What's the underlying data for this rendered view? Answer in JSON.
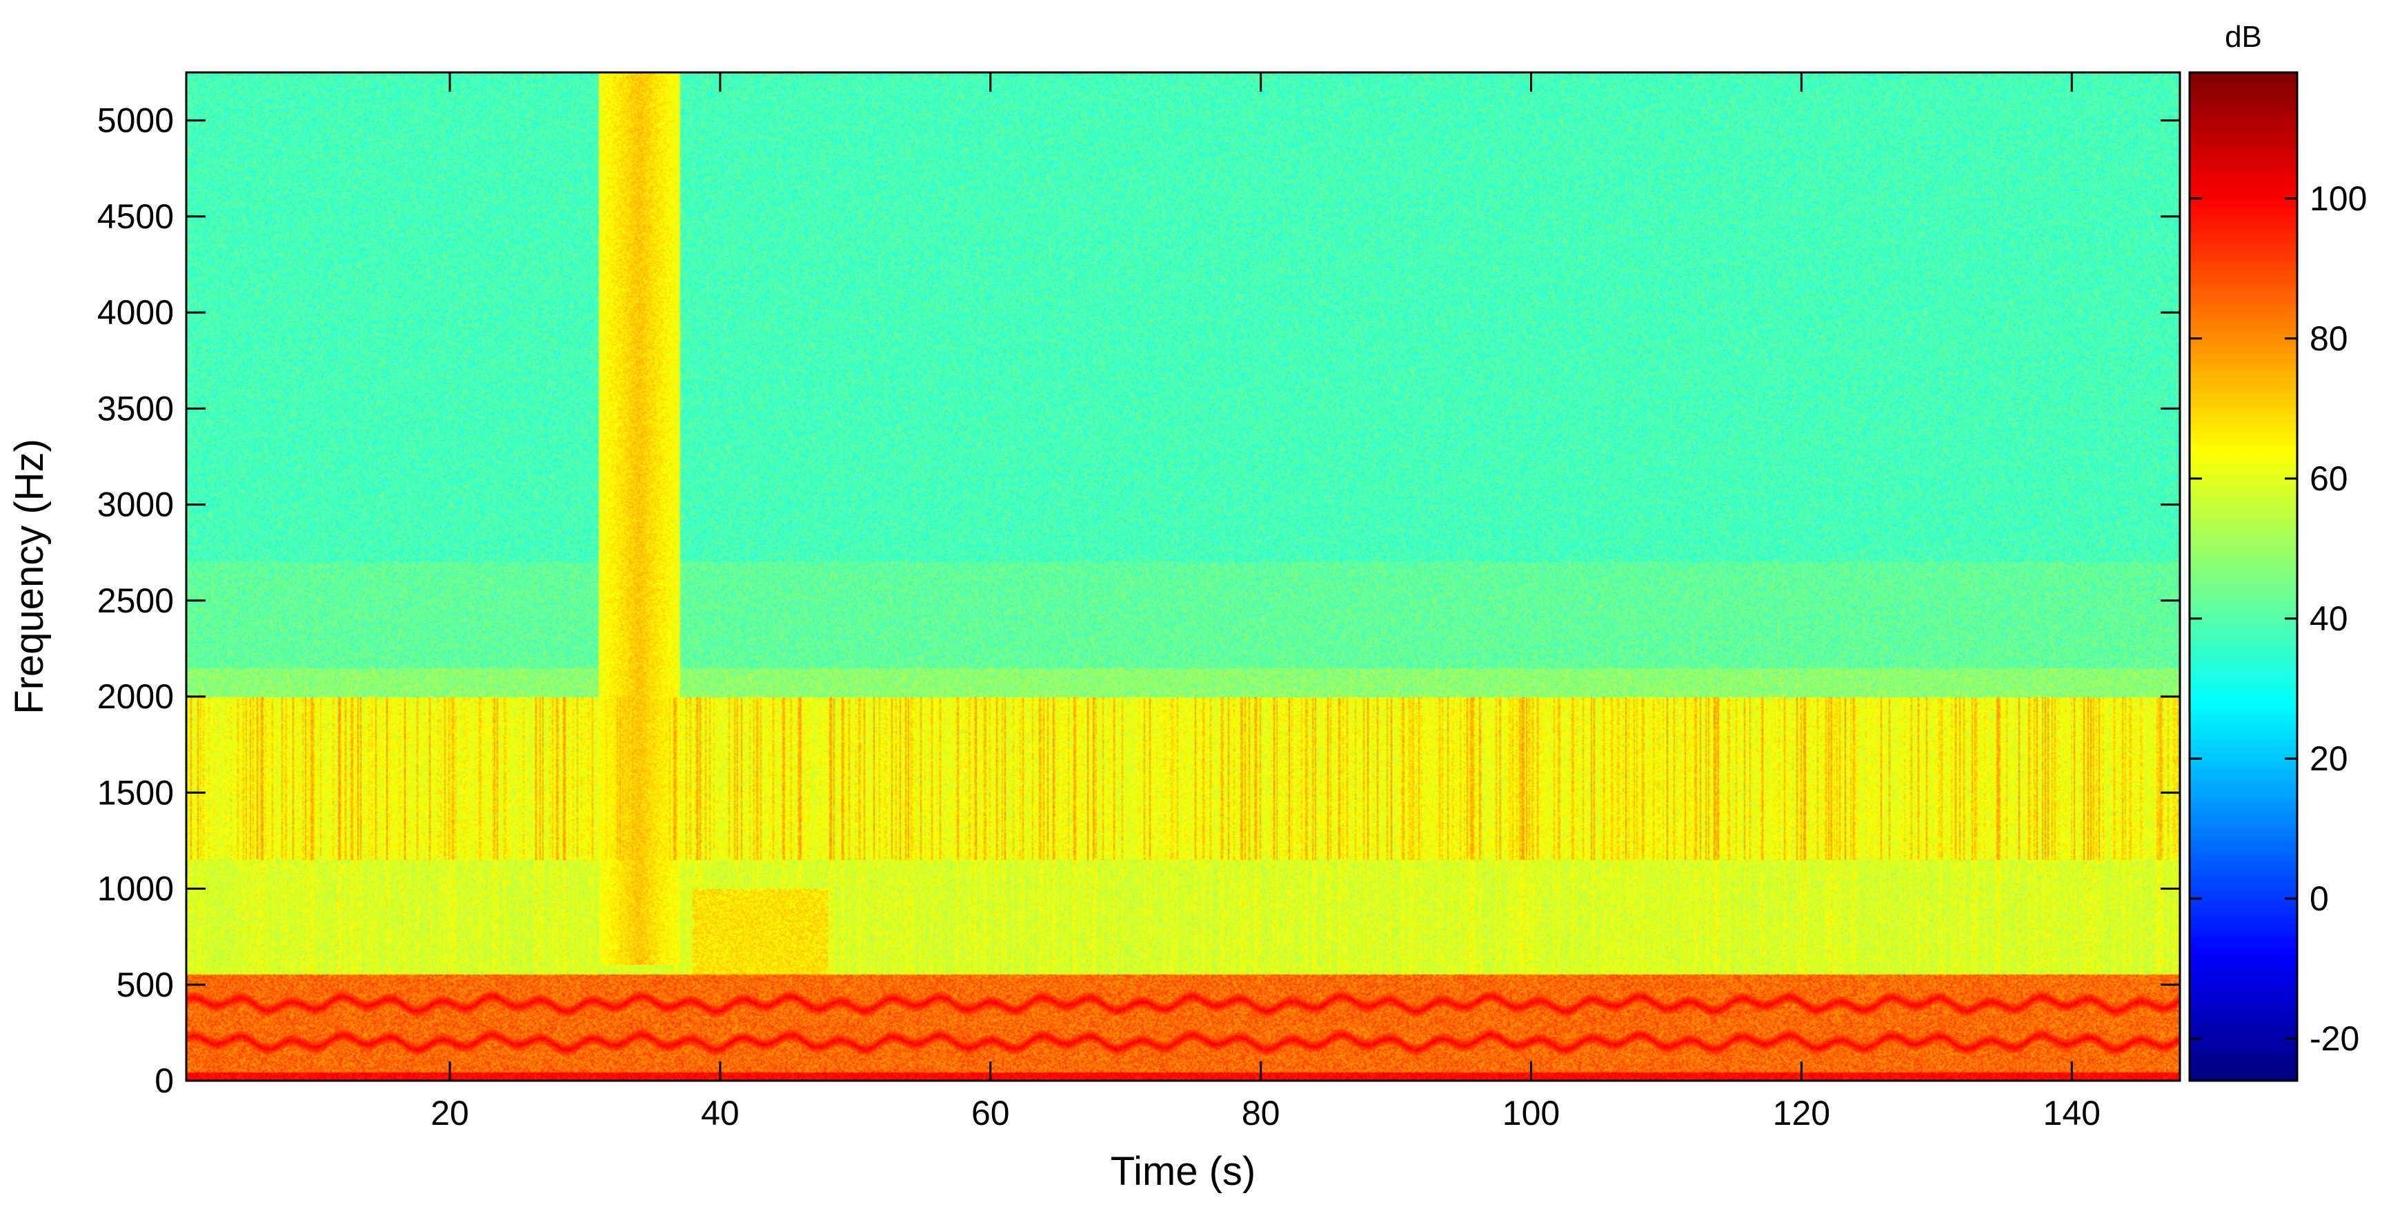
{
  "chart_data": {
    "type": "heatmap",
    "title": "",
    "xlabel": "Time (s)",
    "ylabel": "Frequency (Hz)",
    "xlim": [
      0.5,
      148
    ],
    "ylim": [
      0,
      5250
    ],
    "x_ticks": [
      20,
      40,
      60,
      80,
      100,
      120,
      140
    ],
    "y_ticks": [
      0,
      500,
      1000,
      1500,
      2000,
      2500,
      3000,
      3500,
      4000,
      4500,
      5000
    ],
    "colorbar": {
      "label": "dB",
      "range": [
        -26,
        118
      ],
      "ticks": [
        -20,
        0,
        20,
        40,
        60,
        80,
        100
      ],
      "colormap": "jet"
    },
    "features": {
      "background_level_db": 38,
      "broadband_band_hz": [
        1150,
        2000
      ],
      "broadband_band_db": 62,
      "low_band_hz": [
        0,
        550
      ],
      "low_band_db": 85,
      "harmonic_lines_hz": [
        200,
        400
      ],
      "harmonic_line_db": 100,
      "transient_burst_s": [
        31,
        37
      ],
      "transient_burst_db": 62,
      "secondary_event_s": [
        38,
        48
      ]
    }
  }
}
